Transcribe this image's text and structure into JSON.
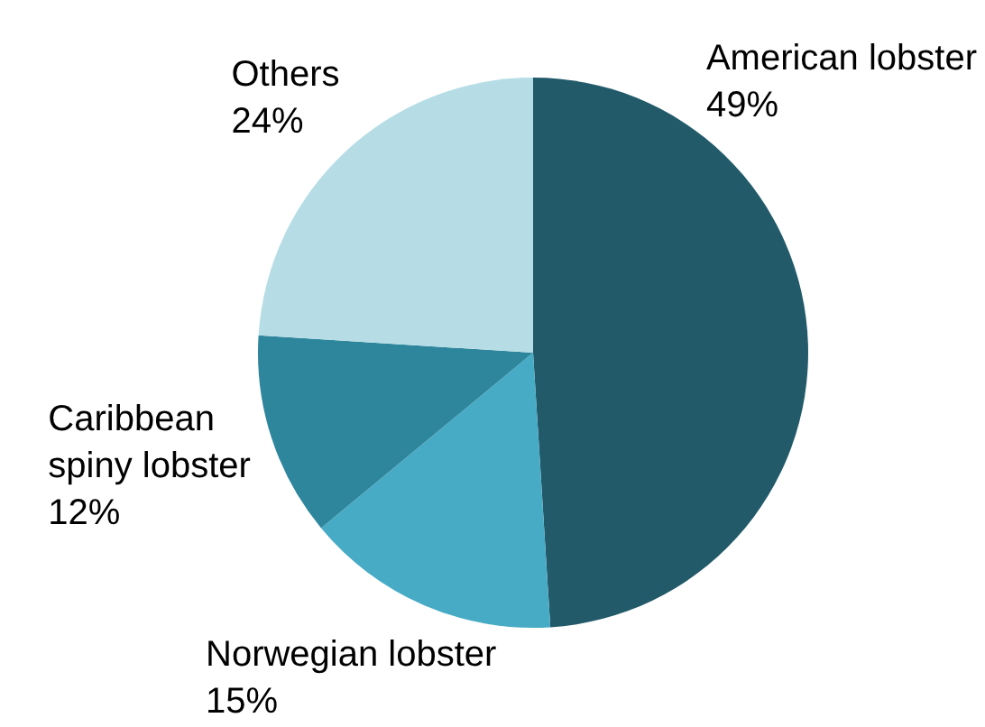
{
  "chart_data": {
    "type": "pie",
    "categories": [
      "American lobster",
      "Norwegian lobster",
      "Caribbean spiny lobster",
      "Others"
    ],
    "values": [
      49,
      15,
      12,
      24
    ],
    "value_labels": [
      "49%",
      "15%",
      "12%",
      "24%"
    ],
    "colors": [
      "#225a6a",
      "#48abc6",
      "#2e869d",
      "#b6dde5"
    ]
  }
}
